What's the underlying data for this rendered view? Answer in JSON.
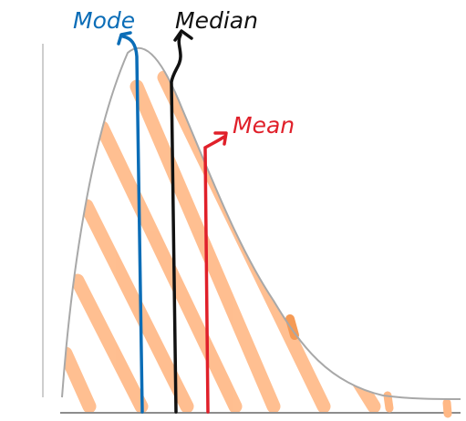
{
  "labels": {
    "mode": "Mode",
    "median": "Median",
    "mean": "Mean"
  },
  "colors": {
    "mode": "#0b6db7",
    "median": "#111111",
    "mean": "#e0202a",
    "curve": "#a8a8a8",
    "hatch": "#ffb885",
    "axis": "#bdbdbd"
  }
}
